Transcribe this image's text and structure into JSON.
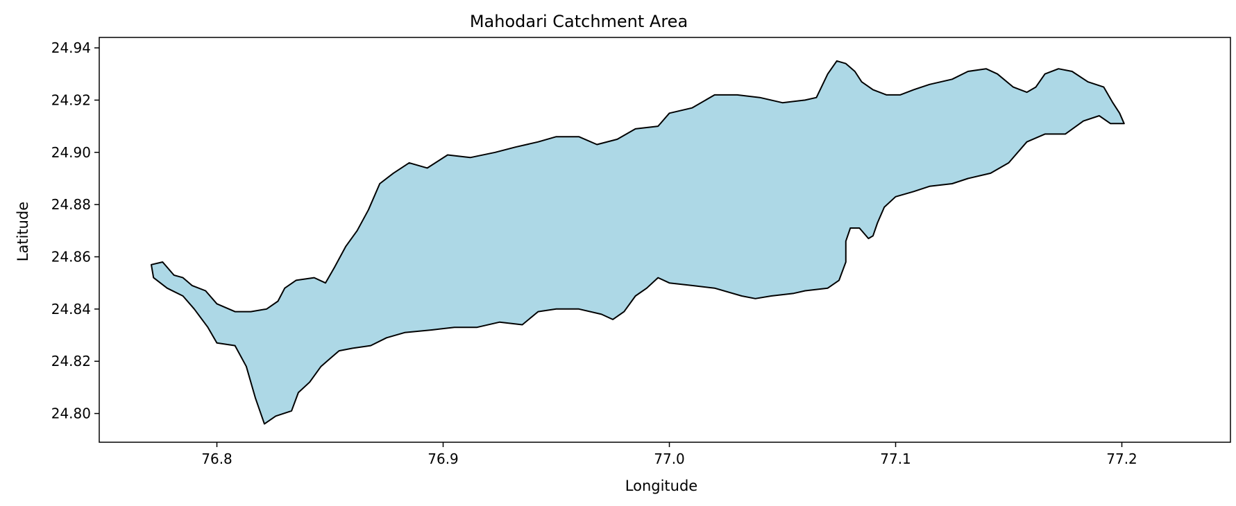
{
  "chart_data": {
    "type": "area",
    "title": "Mahodari Catchment Area",
    "xlabel": "Longitude",
    "ylabel": "Latitude",
    "xlim": [
      76.748,
      77.248
    ],
    "ylim": [
      24.789,
      24.944
    ],
    "xticks": [
      76.8,
      76.9,
      77.0,
      77.1,
      77.2
    ],
    "xtick_labels": [
      "76.8",
      "76.9",
      "77.0",
      "77.1",
      "77.2"
    ],
    "yticks": [
      24.8,
      24.82,
      24.84,
      24.86,
      24.88,
      24.9,
      24.92,
      24.94
    ],
    "ytick_labels": [
      "24.80",
      "24.82",
      "24.84",
      "24.86",
      "24.88",
      "24.90",
      "24.92",
      "24.94"
    ],
    "grid": false,
    "legend": "none",
    "series": [
      {
        "fill": "#add8e6",
        "edge": "#000000",
        "boundary": [
          [
            76.771,
            24.857
          ],
          [
            76.776,
            24.858
          ],
          [
            76.781,
            24.853
          ],
          [
            76.785,
            24.852
          ],
          [
            76.789,
            24.849
          ],
          [
            76.795,
            24.847
          ],
          [
            76.8,
            24.842
          ],
          [
            76.808,
            24.839
          ],
          [
            76.815,
            24.839
          ],
          [
            76.822,
            24.84
          ],
          [
            76.827,
            24.843
          ],
          [
            76.83,
            24.848
          ],
          [
            76.835,
            24.851
          ],
          [
            76.843,
            24.852
          ],
          [
            76.848,
            24.85
          ],
          [
            76.852,
            24.856
          ],
          [
            76.857,
            24.864
          ],
          [
            76.862,
            24.87
          ],
          [
            76.867,
            24.878
          ],
          [
            76.872,
            24.888
          ],
          [
            76.878,
            24.892
          ],
          [
            76.885,
            24.896
          ],
          [
            76.893,
            24.894
          ],
          [
            76.902,
            24.899
          ],
          [
            76.912,
            24.898
          ],
          [
            76.923,
            24.9
          ],
          [
            76.932,
            24.902
          ],
          [
            76.942,
            24.904
          ],
          [
            76.95,
            24.906
          ],
          [
            76.96,
            24.906
          ],
          [
            76.968,
            24.903
          ],
          [
            76.977,
            24.905
          ],
          [
            76.985,
            24.909
          ],
          [
            76.995,
            24.91
          ],
          [
            77.0,
            24.915
          ],
          [
            77.01,
            24.917
          ],
          [
            77.02,
            24.922
          ],
          [
            77.03,
            24.922
          ],
          [
            77.04,
            24.921
          ],
          [
            77.05,
            24.919
          ],
          [
            77.06,
            24.92
          ],
          [
            77.065,
            24.921
          ],
          [
            77.07,
            24.93
          ],
          [
            77.074,
            24.935
          ],
          [
            77.078,
            24.934
          ],
          [
            77.082,
            24.931
          ],
          [
            77.085,
            24.927
          ],
          [
            77.09,
            24.924
          ],
          [
            77.096,
            24.922
          ],
          [
            77.102,
            24.922
          ],
          [
            77.108,
            24.924
          ],
          [
            77.115,
            24.926
          ],
          [
            77.125,
            24.928
          ],
          [
            77.132,
            24.931
          ],
          [
            77.14,
            24.932
          ],
          [
            77.145,
            24.93
          ],
          [
            77.152,
            24.925
          ],
          [
            77.158,
            24.923
          ],
          [
            77.162,
            24.925
          ],
          [
            77.166,
            24.93
          ],
          [
            77.172,
            24.932
          ],
          [
            77.178,
            24.931
          ],
          [
            77.185,
            24.927
          ],
          [
            77.192,
            24.925
          ],
          [
            77.196,
            24.919
          ],
          [
            77.199,
            24.915
          ],
          [
            77.201,
            24.911
          ],
          [
            77.195,
            24.911
          ],
          [
            77.19,
            24.914
          ],
          [
            77.183,
            24.912
          ],
          [
            77.175,
            24.907
          ],
          [
            77.166,
            24.907
          ],
          [
            77.158,
            24.904
          ],
          [
            77.15,
            24.896
          ],
          [
            77.142,
            24.892
          ],
          [
            77.132,
            24.89
          ],
          [
            77.125,
            24.888
          ],
          [
            77.115,
            24.887
          ],
          [
            77.108,
            24.885
          ],
          [
            77.1,
            24.883
          ],
          [
            77.095,
            24.879
          ],
          [
            77.092,
            24.873
          ],
          [
            77.09,
            24.868
          ],
          [
            77.088,
            24.867
          ],
          [
            77.084,
            24.871
          ],
          [
            77.08,
            24.871
          ],
          [
            77.078,
            24.866
          ],
          [
            77.078,
            24.858
          ],
          [
            77.075,
            24.851
          ],
          [
            77.07,
            24.848
          ],
          [
            77.06,
            24.847
          ],
          [
            77.055,
            24.846
          ],
          [
            77.045,
            24.845
          ],
          [
            77.038,
            24.844
          ],
          [
            77.032,
            24.845
          ],
          [
            77.02,
            24.848
          ],
          [
            77.01,
            24.849
          ],
          [
            77.0,
            24.85
          ],
          [
            76.995,
            24.852
          ],
          [
            76.99,
            24.848
          ],
          [
            76.985,
            24.845
          ],
          [
            76.98,
            24.839
          ],
          [
            76.975,
            24.836
          ],
          [
            76.97,
            24.838
          ],
          [
            76.96,
            24.84
          ],
          [
            76.95,
            24.84
          ],
          [
            76.942,
            24.839
          ],
          [
            76.935,
            24.834
          ],
          [
            76.925,
            24.835
          ],
          [
            76.915,
            24.833
          ],
          [
            76.905,
            24.833
          ],
          [
            76.895,
            24.832
          ],
          [
            76.883,
            24.831
          ],
          [
            76.875,
            24.829
          ],
          [
            76.868,
            24.826
          ],
          [
            76.86,
            24.825
          ],
          [
            76.854,
            24.824
          ],
          [
            76.85,
            24.821
          ],
          [
            76.846,
            24.818
          ],
          [
            76.841,
            24.812
          ],
          [
            76.836,
            24.808
          ],
          [
            76.833,
            24.801
          ],
          [
            76.826,
            24.799
          ],
          [
            76.821,
            24.796
          ],
          [
            76.817,
            24.806
          ],
          [
            76.813,
            24.818
          ],
          [
            76.808,
            24.826
          ],
          [
            76.8,
            24.827
          ],
          [
            76.796,
            24.833
          ],
          [
            76.79,
            24.84
          ],
          [
            76.785,
            24.845
          ],
          [
            76.778,
            24.848
          ],
          [
            76.772,
            24.852
          ],
          [
            76.771,
            24.857
          ]
        ]
      }
    ]
  }
}
